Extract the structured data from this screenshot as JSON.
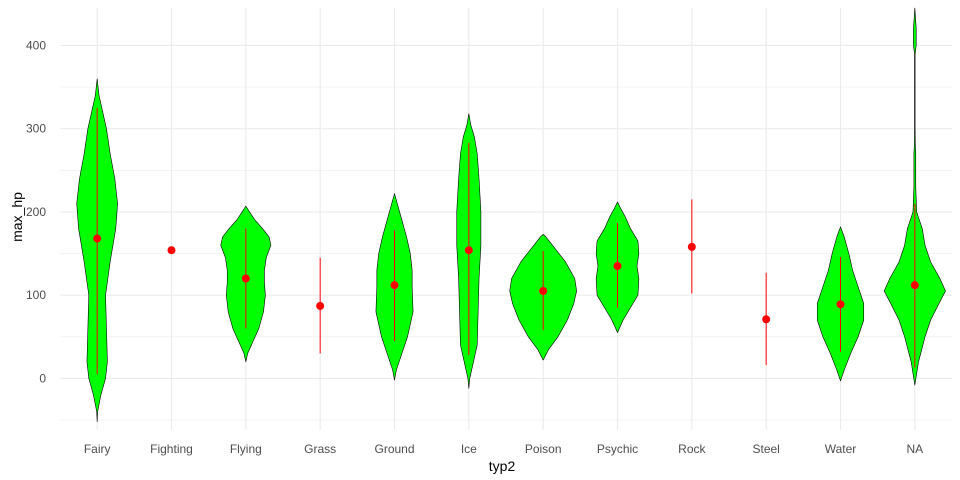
{
  "chart_data": {
    "type": "violin",
    "xlabel": "typ2",
    "ylabel": "max_hp",
    "ylim": [
      -62,
      445
    ],
    "yticks": [
      0,
      100,
      200,
      300,
      400
    ],
    "grid": true,
    "legend": "none",
    "colors": {
      "violin_fill": "#00ff00",
      "violin_outline": "#000000",
      "summary": "#ff0000",
      "grid": "#ebebeb"
    },
    "categories": [
      "Fairy",
      "Fighting",
      "Flying",
      "Grass",
      "Ground",
      "Ice",
      "Poison",
      "Psychic",
      "Rock",
      "Steel",
      "Water",
      "NA"
    ],
    "violins": [
      {
        "category": "Fairy",
        "profile": [
          [
            -52,
            0
          ],
          [
            -40,
            0.5
          ],
          [
            -20,
            4
          ],
          [
            0,
            9
          ],
          [
            20,
            11
          ],
          [
            60,
            10
          ],
          [
            100,
            9
          ],
          [
            140,
            14
          ],
          [
            180,
            20
          ],
          [
            210,
            22
          ],
          [
            240,
            19
          ],
          [
            270,
            14
          ],
          [
            300,
            10
          ],
          [
            320,
            6
          ],
          [
            340,
            2
          ],
          [
            360,
            0
          ]
        ]
      },
      {
        "category": "Fighting",
        "profile": []
      },
      {
        "category": "Flying",
        "profile": [
          [
            20,
            0
          ],
          [
            30,
            2
          ],
          [
            45,
            8
          ],
          [
            60,
            14
          ],
          [
            80,
            19
          ],
          [
            100,
            21
          ],
          [
            115,
            20
          ],
          [
            130,
            20
          ],
          [
            145,
            22
          ],
          [
            160,
            27
          ],
          [
            170,
            25
          ],
          [
            180,
            18
          ],
          [
            190,
            10
          ],
          [
            200,
            4
          ],
          [
            207,
            0
          ]
        ]
      },
      {
        "category": "Grass",
        "profile": []
      },
      {
        "category": "Ground",
        "profile": [
          [
            -2,
            0
          ],
          [
            10,
            2
          ],
          [
            30,
            8
          ],
          [
            50,
            14
          ],
          [
            80,
            20
          ],
          [
            110,
            19
          ],
          [
            130,
            19
          ],
          [
            150,
            17
          ],
          [
            170,
            13
          ],
          [
            190,
            8
          ],
          [
            210,
            3
          ],
          [
            222,
            0
          ]
        ]
      },
      {
        "category": "Ice",
        "profile": [
          [
            -12,
            0
          ],
          [
            0,
            1
          ],
          [
            20,
            5
          ],
          [
            40,
            9
          ],
          [
            80,
            10
          ],
          [
            120,
            11
          ],
          [
            160,
            13
          ],
          [
            200,
            13
          ],
          [
            240,
            11
          ],
          [
            270,
            9
          ],
          [
            290,
            6
          ],
          [
            305,
            2
          ],
          [
            318,
            0
          ]
        ]
      },
      {
        "category": "Poison",
        "profile": [
          [
            22,
            0
          ],
          [
            35,
            6
          ],
          [
            50,
            16
          ],
          [
            70,
            26
          ],
          [
            90,
            33
          ],
          [
            105,
            36
          ],
          [
            120,
            34
          ],
          [
            140,
            24
          ],
          [
            160,
            10
          ],
          [
            170,
            3
          ],
          [
            173,
            0
          ]
        ]
      },
      {
        "category": "Psychic",
        "profile": [
          [
            55,
            0
          ],
          [
            70,
            6
          ],
          [
            85,
            14
          ],
          [
            100,
            22
          ],
          [
            120,
            23
          ],
          [
            135,
            21
          ],
          [
            150,
            23
          ],
          [
            165,
            22
          ],
          [
            180,
            14
          ],
          [
            195,
            8
          ],
          [
            205,
            3
          ],
          [
            212,
            0
          ]
        ]
      },
      {
        "category": "Rock",
        "profile": []
      },
      {
        "category": "Steel",
        "profile": []
      },
      {
        "category": "Water",
        "profile": [
          [
            -3,
            0
          ],
          [
            10,
            4
          ],
          [
            30,
            11
          ],
          [
            50,
            19
          ],
          [
            70,
            25
          ],
          [
            90,
            25
          ],
          [
            110,
            19
          ],
          [
            130,
            13
          ],
          [
            150,
            9
          ],
          [
            170,
            4
          ],
          [
            182,
            0
          ]
        ]
      },
      {
        "category": "NA",
        "profile": [
          [
            -8,
            0
          ],
          [
            20,
            4
          ],
          [
            50,
            11
          ],
          [
            70,
            17
          ],
          [
            90,
            26
          ],
          [
            105,
            33
          ],
          [
            120,
            27
          ],
          [
            140,
            17
          ],
          [
            160,
            11
          ],
          [
            180,
            8
          ],
          [
            200,
            2
          ],
          [
            230,
            1
          ],
          [
            270,
            1
          ],
          [
            280,
            0.5
          ],
          [
            300,
            0.3
          ],
          [
            390,
            0.3
          ],
          [
            400,
            1.5
          ],
          [
            420,
            1.5
          ],
          [
            445,
            0
          ]
        ]
      }
    ],
    "summary": [
      {
        "category": "Fairy",
        "mean": 168,
        "low": 5,
        "high": 325
      },
      {
        "category": "Fighting",
        "mean": 154,
        "low": 154,
        "high": 154
      },
      {
        "category": "Flying",
        "mean": 120,
        "low": 60,
        "high": 180
      },
      {
        "category": "Grass",
        "mean": 87,
        "low": 30,
        "high": 145
      },
      {
        "category": "Ground",
        "mean": 112,
        "low": 45,
        "high": 178
      },
      {
        "category": "Ice",
        "mean": 154,
        "low": 28,
        "high": 283
      },
      {
        "category": "Poison",
        "mean": 105,
        "low": 58,
        "high": 153
      },
      {
        "category": "Psychic",
        "mean": 135,
        "low": 85,
        "high": 187
      },
      {
        "category": "Rock",
        "mean": 158,
        "low": 102,
        "high": 215
      },
      {
        "category": "Steel",
        "mean": 71,
        "low": 16,
        "high": 127
      },
      {
        "category": "Water",
        "mean": 89,
        "low": 32,
        "high": 146
      },
      {
        "category": "NA",
        "mean": 112,
        "low": 13,
        "high": 210
      }
    ]
  }
}
